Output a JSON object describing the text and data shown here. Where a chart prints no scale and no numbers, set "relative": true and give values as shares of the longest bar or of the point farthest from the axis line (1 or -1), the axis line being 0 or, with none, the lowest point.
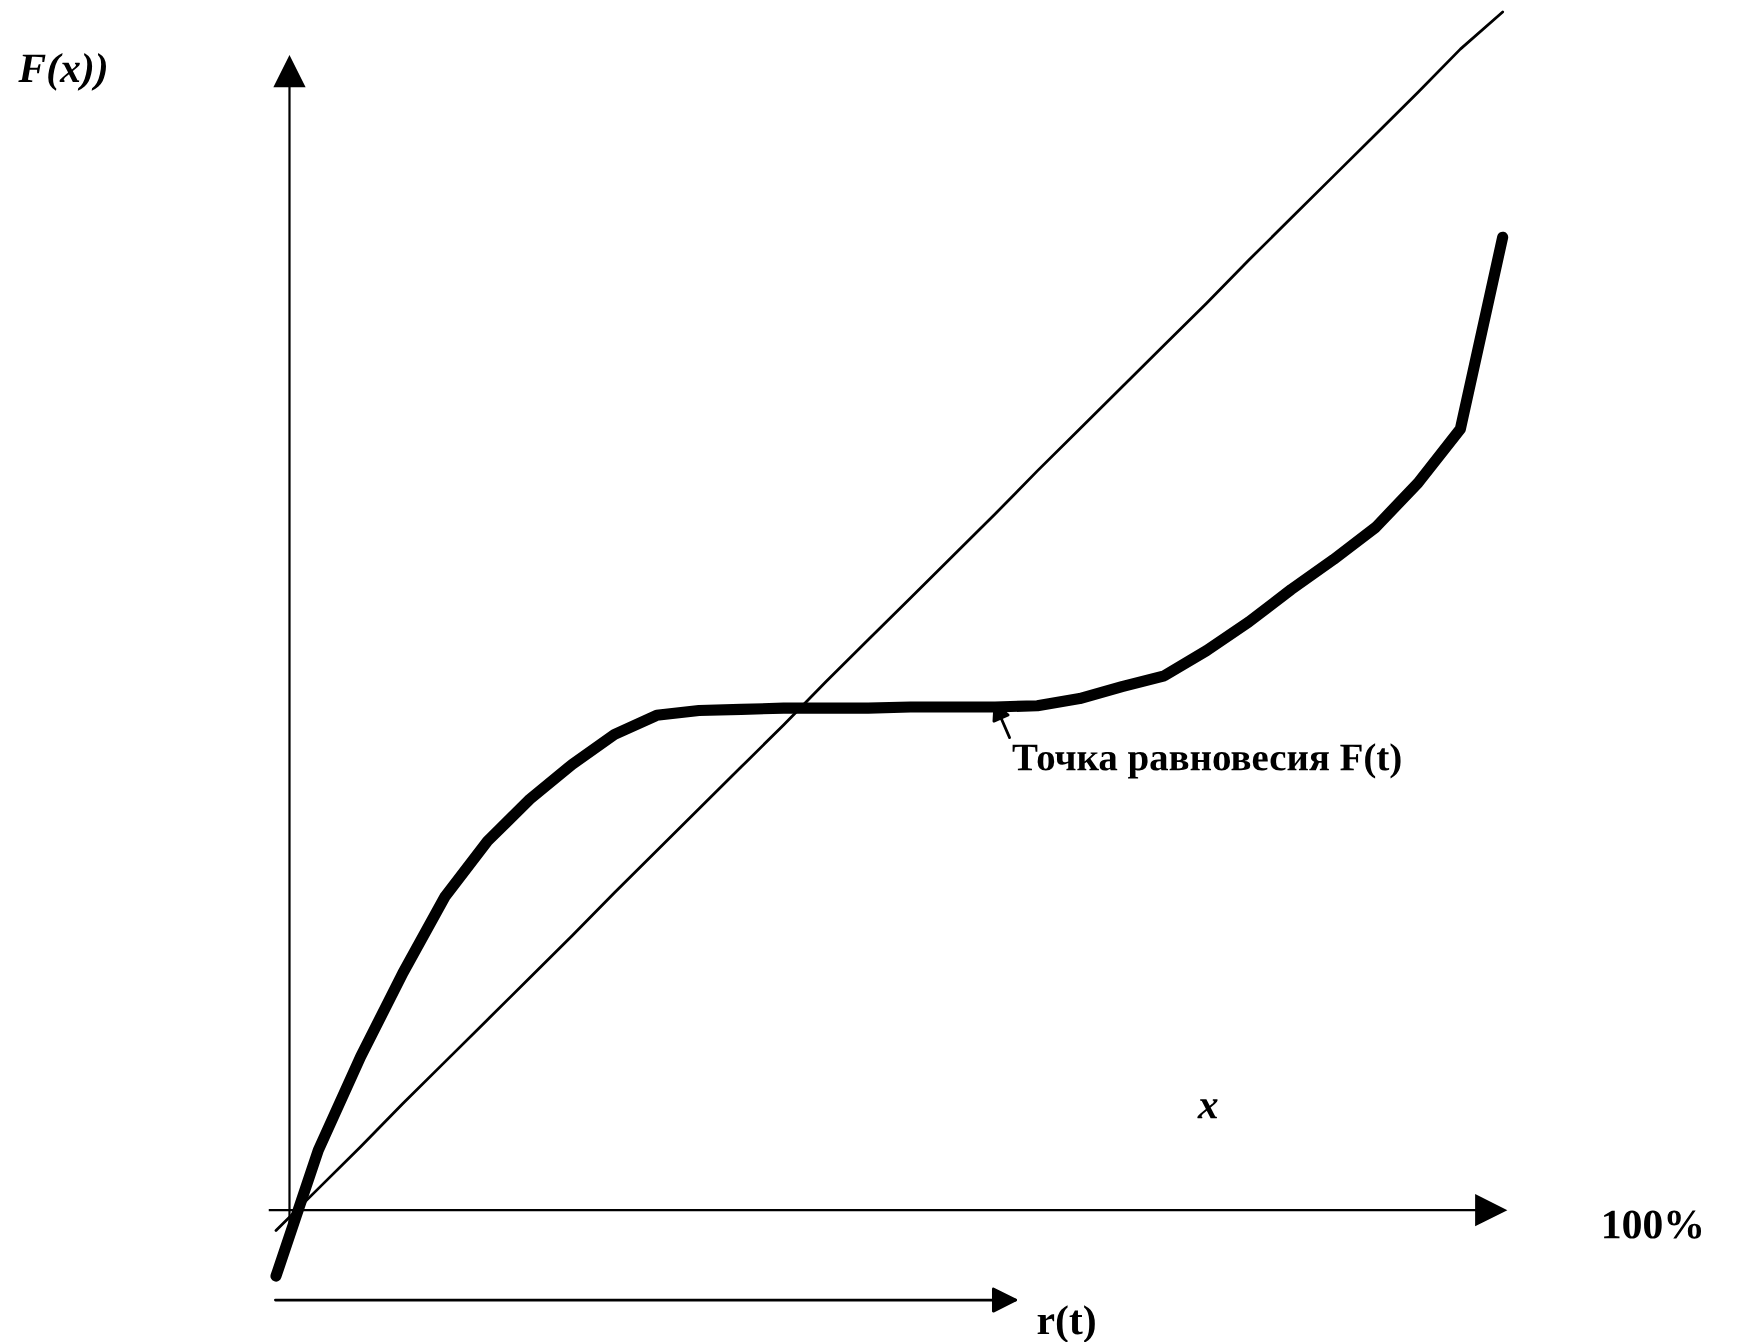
{
  "chart_data": {
    "type": "line",
    "relative": true,
    "ylabel": "F(x))",
    "xlabel": "x",
    "annotations": [
      "100%",
      "r(t)",
      "Точка равновесия F(t)"
    ],
    "categories": [
      null,
      null,
      null,
      null,
      null,
      null,
      null,
      null,
      null,
      null,
      null,
      null,
      null,
      null,
      null,
      null,
      null,
      null,
      null,
      null,
      null,
      null,
      null,
      null,
      null,
      null,
      null,
      null,
      null,
      null
    ],
    "series": [
      {
        "color": "#000000",
        "values": [
          -0.017,
          0.018,
          0.053,
          0.089,
          0.124,
          0.159,
          0.194,
          0.229,
          0.265,
          0.3,
          0.335,
          0.37,
          0.405,
          0.441,
          0.476,
          0.511,
          0.546,
          0.581,
          0.617,
          0.652,
          0.687,
          0.722,
          0.757,
          0.793,
          0.828,
          0.863,
          0.898,
          0.933,
          0.969,
          1.0
        ]
      },
      {
        "color": "#000000",
        "values": [
          -0.055,
          0.05,
          0.128,
          0.198,
          0.262,
          0.308,
          0.343,
          0.372,
          0.397,
          0.413,
          0.417,
          0.418,
          0.419,
          0.419,
          0.419,
          0.42,
          0.42,
          0.42,
          0.421,
          0.427,
          0.437,
          0.446,
          0.467,
          0.491,
          0.518,
          0.543,
          0.57,
          0.607,
          0.652,
          0.812
        ]
      }
    ]
  }
}
